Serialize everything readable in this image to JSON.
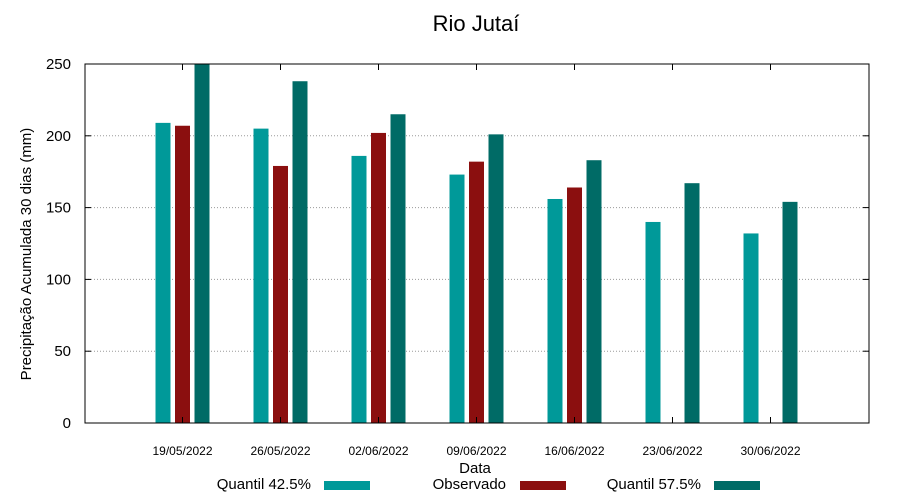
{
  "chart_data": {
    "type": "bar",
    "title": "Rio Jutaí",
    "xlabel": "Data",
    "ylabel": "Precipitação Acumulada 30 dias (mm)",
    "ylim": [
      0,
      250
    ],
    "yticks": [
      0,
      50,
      100,
      150,
      200,
      250
    ],
    "grid": "horizontal dotted",
    "legend_position": "bottom",
    "categories": [
      "19/05/2022",
      "26/05/2022",
      "02/06/2022",
      "09/06/2022",
      "16/06/2022",
      "23/06/2022",
      "30/06/2022"
    ],
    "series": [
      {
        "name": "Quantil 42.5%",
        "color": "#009999",
        "values": [
          209,
          205,
          186,
          173,
          156,
          140,
          132
        ]
      },
      {
        "name": "Observado",
        "color": "#8b0f0f",
        "values": [
          207,
          179,
          202,
          182,
          164,
          null,
          null
        ]
      },
      {
        "name": "Quantil 57.5%",
        "color": "#006b66",
        "values": [
          250,
          238,
          215,
          201,
          183,
          167,
          154
        ]
      }
    ]
  }
}
